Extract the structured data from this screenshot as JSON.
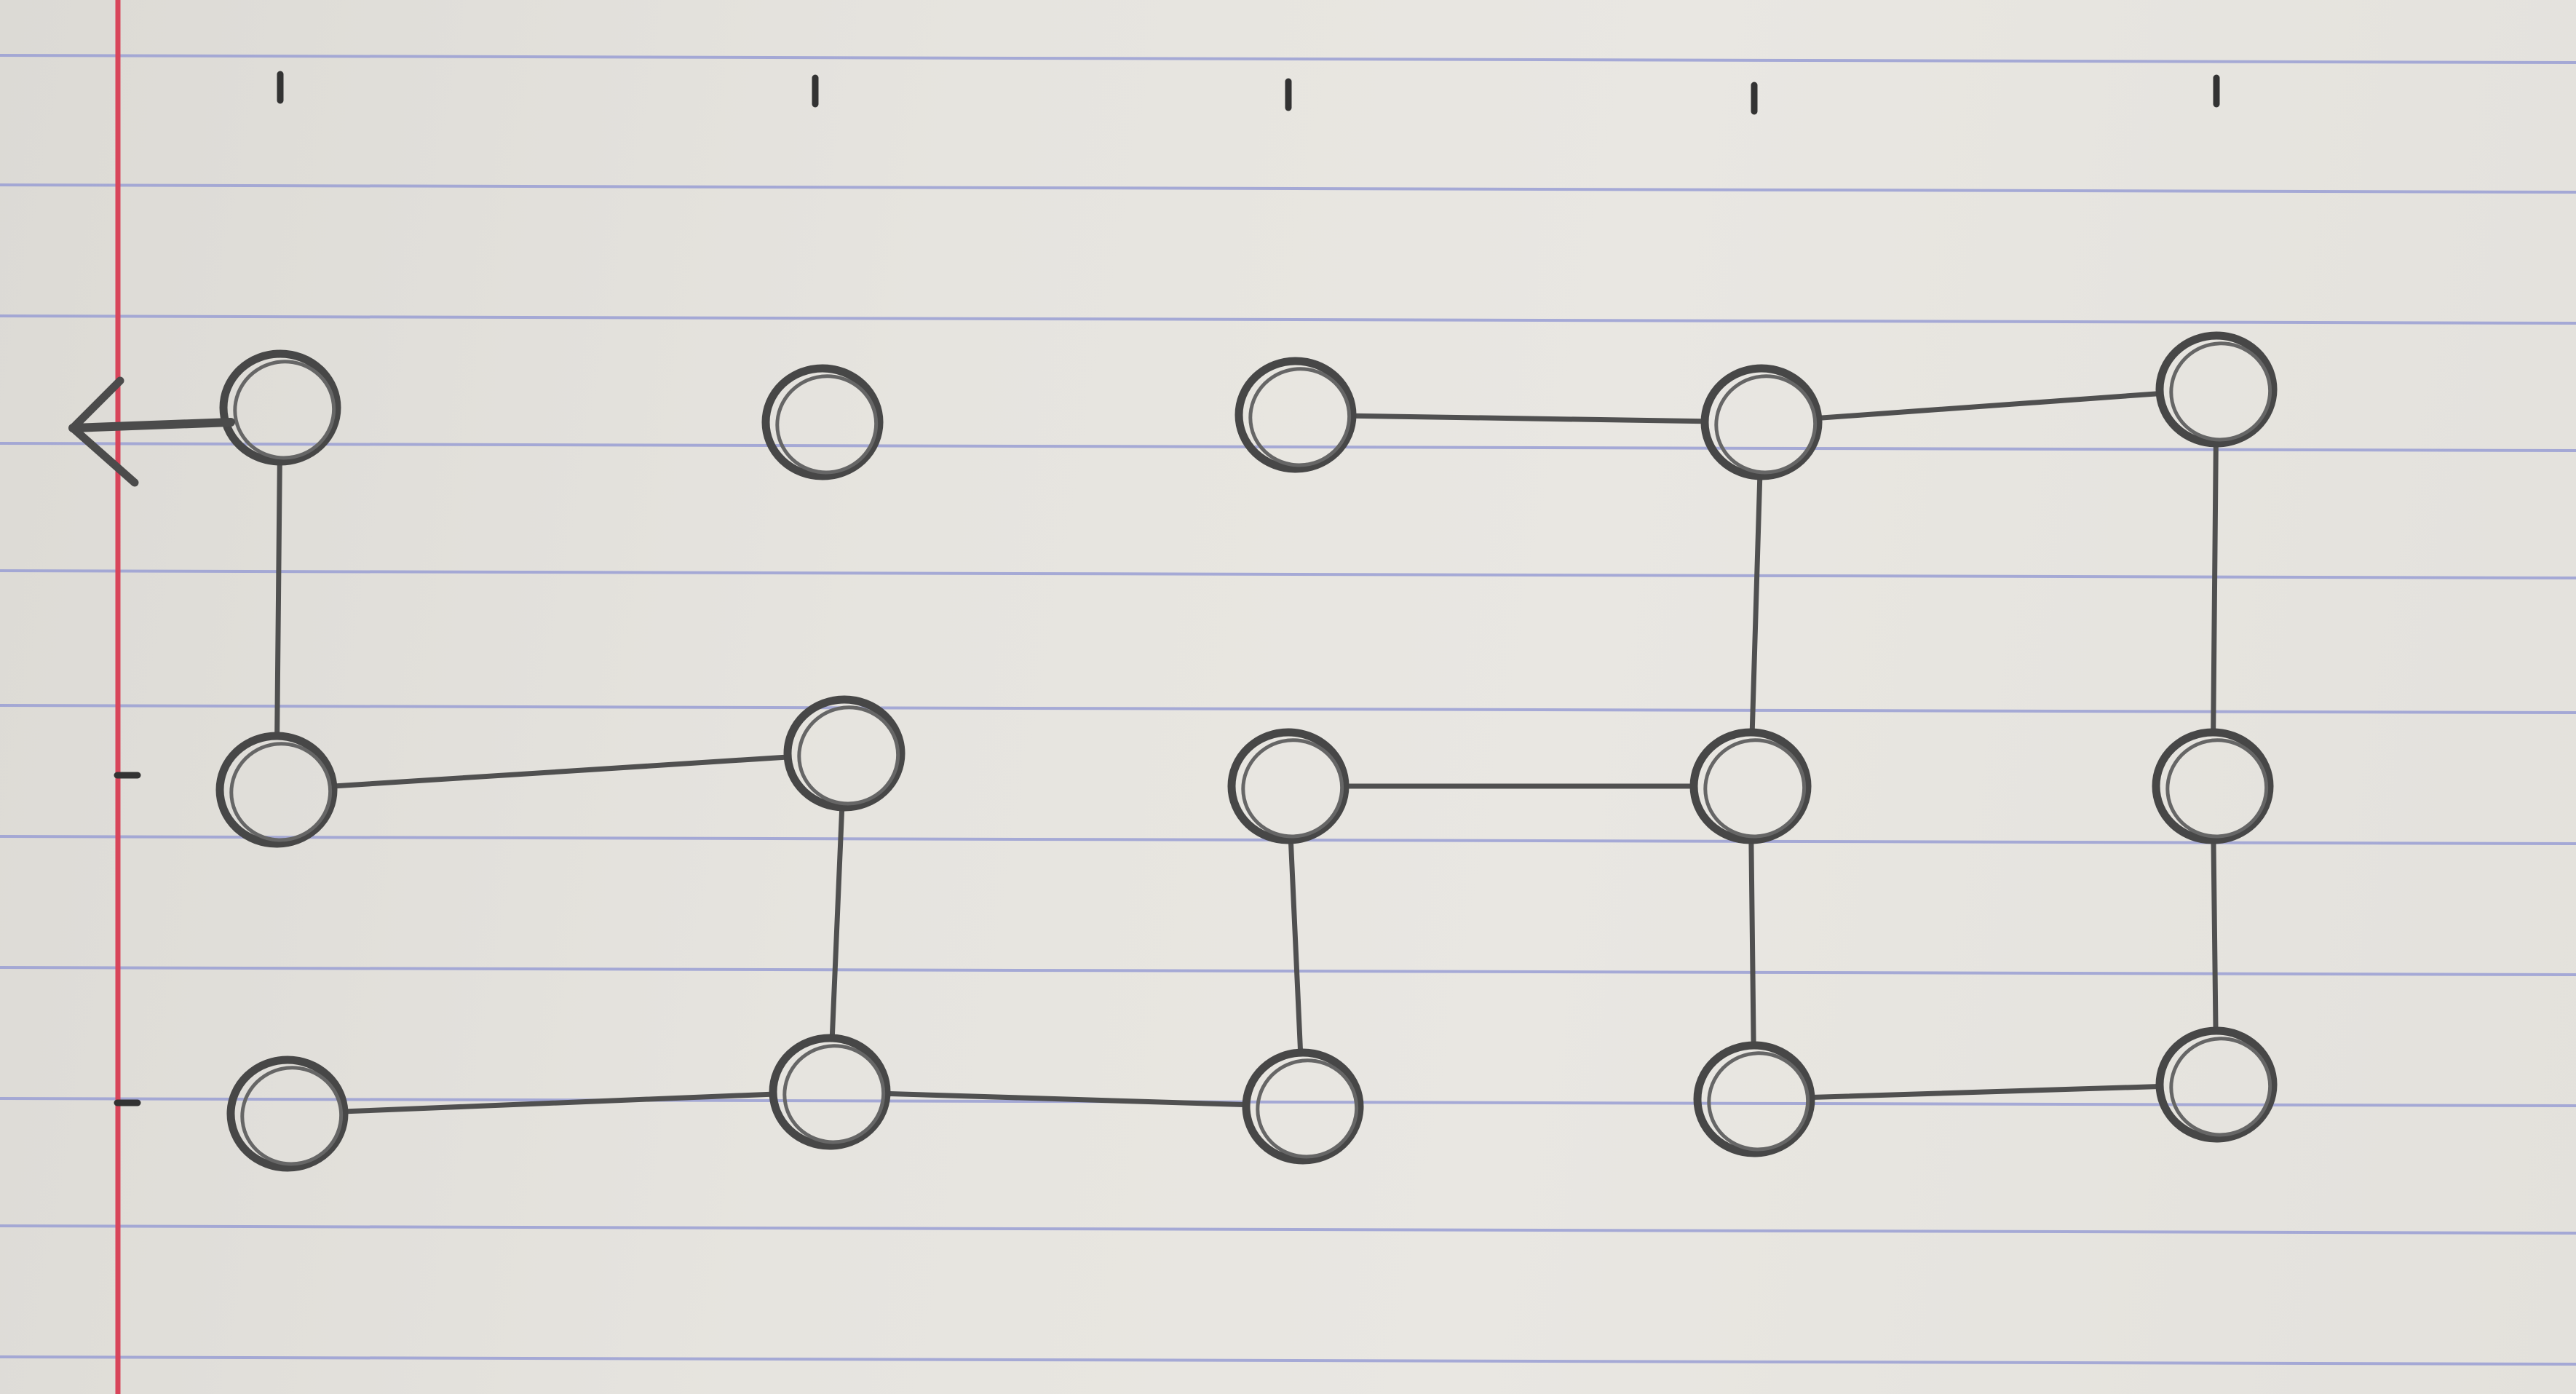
{
  "diagram": {
    "type": "hand-drawn grid graph on lined notebook paper",
    "colors": {
      "pencil": "#4b4b4b",
      "rule_line": "#9a9fd4",
      "margin_line": "#d8455a"
    },
    "grid": {
      "columns": 5,
      "rows": 3
    },
    "nodes": [
      {
        "id": "r1c1",
        "row": 1,
        "col": 1
      },
      {
        "id": "r1c2",
        "row": 1,
        "col": 2
      },
      {
        "id": "r1c3",
        "row": 1,
        "col": 3
      },
      {
        "id": "r1c4",
        "row": 1,
        "col": 4
      },
      {
        "id": "r1c5",
        "row": 1,
        "col": 5
      },
      {
        "id": "r2c1",
        "row": 2,
        "col": 1
      },
      {
        "id": "r2c2",
        "row": 2,
        "col": 2
      },
      {
        "id": "r2c3",
        "row": 2,
        "col": 3
      },
      {
        "id": "r2c4",
        "row": 2,
        "col": 4
      },
      {
        "id": "r2c5",
        "row": 2,
        "col": 5
      },
      {
        "id": "r3c1",
        "row": 3,
        "col": 1
      },
      {
        "id": "r3c2",
        "row": 3,
        "col": 2
      },
      {
        "id": "r3c3",
        "row": 3,
        "col": 3
      },
      {
        "id": "r3c4",
        "row": 3,
        "col": 4
      },
      {
        "id": "r3c5",
        "row": 3,
        "col": 5
      }
    ],
    "edges": [
      [
        "r1c1",
        "r2c1"
      ],
      [
        "r2c1",
        "r2c2"
      ],
      [
        "r2c2",
        "r3c2"
      ],
      [
        "r3c1",
        "r3c2"
      ],
      [
        "r3c2",
        "r3c3"
      ],
      [
        "r3c3",
        "r2c3"
      ],
      [
        "r2c3",
        "r2c4"
      ],
      [
        "r2c4",
        "r1c4"
      ],
      [
        "r1c3",
        "r1c4"
      ],
      [
        "r1c4",
        "r1c5"
      ],
      [
        "r1c5",
        "r2c5"
      ],
      [
        "r2c5",
        "r3c5"
      ],
      [
        "r3c5",
        "r3c4"
      ],
      [
        "r3c4",
        "r2c4"
      ]
    ],
    "exit_arrow": {
      "from": "r1c1",
      "direction": "left"
    }
  }
}
